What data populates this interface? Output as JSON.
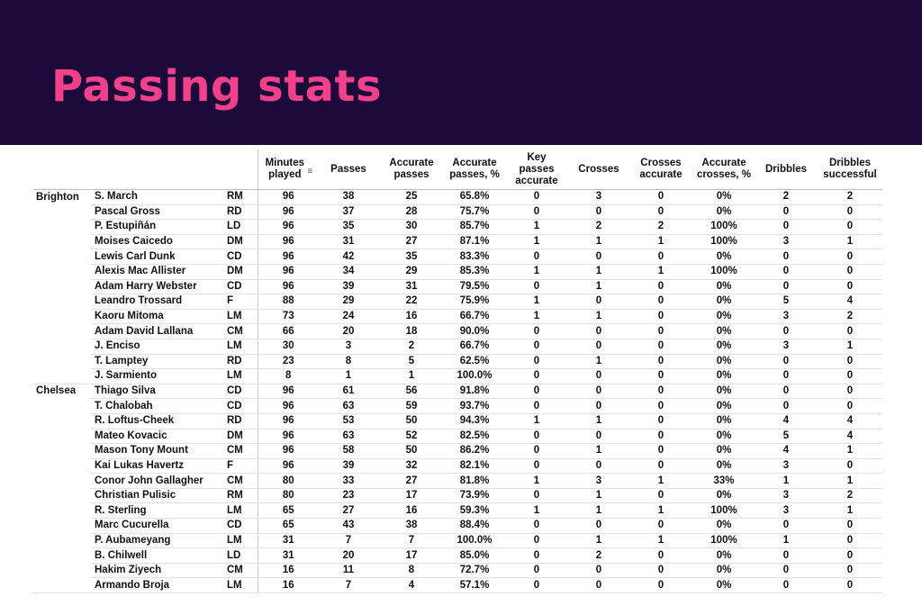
{
  "page": {
    "title": "Passing stats"
  },
  "colors": {
    "banner_bg": "#1c0a3a",
    "title_color": "#f0418a"
  },
  "table": {
    "columns": [
      "Minutes played",
      "Passes",
      "Accurate passes",
      "Accurate passes, %",
      "Key passes accurate",
      "Crosses",
      "Crosses accurate",
      "Accurate crosses, %",
      "Dribbles",
      "Dribbles successful"
    ],
    "sort_icon": "sort-icon",
    "rows": [
      {
        "team": "Brighton",
        "player": "S. March",
        "pos": "RM",
        "vals": [
          "96",
          "38",
          "25",
          "65.8%",
          "0",
          "3",
          "0",
          "0%",
          "2",
          "2"
        ]
      },
      {
        "team": "",
        "player": "Pascal Gross",
        "pos": "RD",
        "vals": [
          "96",
          "37",
          "28",
          "75.7%",
          "0",
          "0",
          "0",
          "0%",
          "0",
          "0"
        ]
      },
      {
        "team": "",
        "player": "P. Estupiñán",
        "pos": "LD",
        "vals": [
          "96",
          "35",
          "30",
          "85.7%",
          "1",
          "2",
          "2",
          "100%",
          "0",
          "0"
        ]
      },
      {
        "team": "",
        "player": "Moises Caicedo",
        "pos": "DM",
        "vals": [
          "96",
          "31",
          "27",
          "87.1%",
          "1",
          "1",
          "1",
          "100%",
          "3",
          "1"
        ]
      },
      {
        "team": "",
        "player": "Lewis Carl Dunk",
        "pos": "CD",
        "vals": [
          "96",
          "42",
          "35",
          "83.3%",
          "0",
          "0",
          "0",
          "0%",
          "0",
          "0"
        ]
      },
      {
        "team": "",
        "player": "Alexis Mac Allister",
        "pos": "DM",
        "vals": [
          "96",
          "34",
          "29",
          "85.3%",
          "1",
          "1",
          "1",
          "100%",
          "0",
          "0"
        ]
      },
      {
        "team": "",
        "player": "Adam Harry Webster",
        "pos": "CD",
        "vals": [
          "96",
          "39",
          "31",
          "79.5%",
          "0",
          "1",
          "0",
          "0%",
          "0",
          "0"
        ]
      },
      {
        "team": "",
        "player": "Leandro Trossard",
        "pos": "F",
        "vals": [
          "88",
          "29",
          "22",
          "75.9%",
          "1",
          "0",
          "0",
          "0%",
          "5",
          "4"
        ]
      },
      {
        "team": "",
        "player": "Kaoru Mitoma",
        "pos": "LM",
        "vals": [
          "73",
          "24",
          "16",
          "66.7%",
          "1",
          "1",
          "0",
          "0%",
          "3",
          "2"
        ]
      },
      {
        "team": "",
        "player": "Adam David Lallana",
        "pos": "CM",
        "vals": [
          "66",
          "20",
          "18",
          "90.0%",
          "0",
          "0",
          "0",
          "0%",
          "0",
          "0"
        ]
      },
      {
        "team": "",
        "player": "J. Enciso",
        "pos": "LM",
        "vals": [
          "30",
          "3",
          "2",
          "66.7%",
          "0",
          "0",
          "0",
          "0%",
          "3",
          "1"
        ]
      },
      {
        "team": "",
        "player": "T. Lamptey",
        "pos": "RD",
        "vals": [
          "23",
          "8",
          "5",
          "62.5%",
          "0",
          "1",
          "0",
          "0%",
          "0",
          "0"
        ]
      },
      {
        "team": "",
        "player": "J. Sarmiento",
        "pos": "LM",
        "vals": [
          "8",
          "1",
          "1",
          "100.0%",
          "0",
          "0",
          "0",
          "0%",
          "0",
          "0"
        ]
      },
      {
        "team": "Chelsea",
        "player": "Thiago Silva",
        "pos": "CD",
        "vals": [
          "96",
          "61",
          "56",
          "91.8%",
          "0",
          "0",
          "0",
          "0%",
          "0",
          "0"
        ]
      },
      {
        "team": "",
        "player": "T. Chalobah",
        "pos": "CD",
        "vals": [
          "96",
          "63",
          "59",
          "93.7%",
          "0",
          "0",
          "0",
          "0%",
          "0",
          "0"
        ]
      },
      {
        "team": "",
        "player": "R. Loftus-Cheek",
        "pos": "RD",
        "vals": [
          "96",
          "53",
          "50",
          "94.3%",
          "1",
          "1",
          "0",
          "0%",
          "4",
          "4"
        ]
      },
      {
        "team": "",
        "player": "Mateo Kovacic",
        "pos": "DM",
        "vals": [
          "96",
          "63",
          "52",
          "82.5%",
          "0",
          "0",
          "0",
          "0%",
          "5",
          "4"
        ]
      },
      {
        "team": "",
        "player": "Mason Tony Mount",
        "pos": "CM",
        "vals": [
          "96",
          "58",
          "50",
          "86.2%",
          "0",
          "1",
          "0",
          "0%",
          "4",
          "1"
        ]
      },
      {
        "team": "",
        "player": "Kai Lukas Havertz",
        "pos": "F",
        "vals": [
          "96",
          "39",
          "32",
          "82.1%",
          "0",
          "0",
          "0",
          "0%",
          "3",
          "0"
        ]
      },
      {
        "team": "",
        "player": "Conor John Gallagher",
        "pos": "CM",
        "vals": [
          "80",
          "33",
          "27",
          "81.8%",
          "1",
          "3",
          "1",
          "33%",
          "1",
          "1"
        ]
      },
      {
        "team": "",
        "player": "Christian Pulisic",
        "pos": "RM",
        "vals": [
          "80",
          "23",
          "17",
          "73.9%",
          "0",
          "1",
          "0",
          "0%",
          "3",
          "2"
        ]
      },
      {
        "team": "",
        "player": "R. Sterling",
        "pos": "LM",
        "vals": [
          "65",
          "27",
          "16",
          "59.3%",
          "1",
          "1",
          "1",
          "100%",
          "3",
          "1"
        ]
      },
      {
        "team": "",
        "player": "Marc Cucurella",
        "pos": "CD",
        "vals": [
          "65",
          "43",
          "38",
          "88.4%",
          "0",
          "0",
          "0",
          "0%",
          "0",
          "0"
        ]
      },
      {
        "team": "",
        "player": "P. Aubameyang",
        "pos": "LM",
        "vals": [
          "31",
          "7",
          "7",
          "100.0%",
          "0",
          "1",
          "1",
          "100%",
          "1",
          "0"
        ]
      },
      {
        "team": "",
        "player": "B. Chilwell",
        "pos": "LD",
        "vals": [
          "31",
          "20",
          "17",
          "85.0%",
          "0",
          "2",
          "0",
          "0%",
          "0",
          "0"
        ]
      },
      {
        "team": "",
        "player": "Hakim Ziyech",
        "pos": "CM",
        "vals": [
          "16",
          "11",
          "8",
          "72.7%",
          "0",
          "0",
          "0",
          "0%",
          "0",
          "0"
        ]
      },
      {
        "team": "",
        "player": "Armando Broja",
        "pos": "LM",
        "vals": [
          "16",
          "7",
          "4",
          "57.1%",
          "0",
          "0",
          "0",
          "0%",
          "0",
          "0"
        ]
      }
    ]
  }
}
